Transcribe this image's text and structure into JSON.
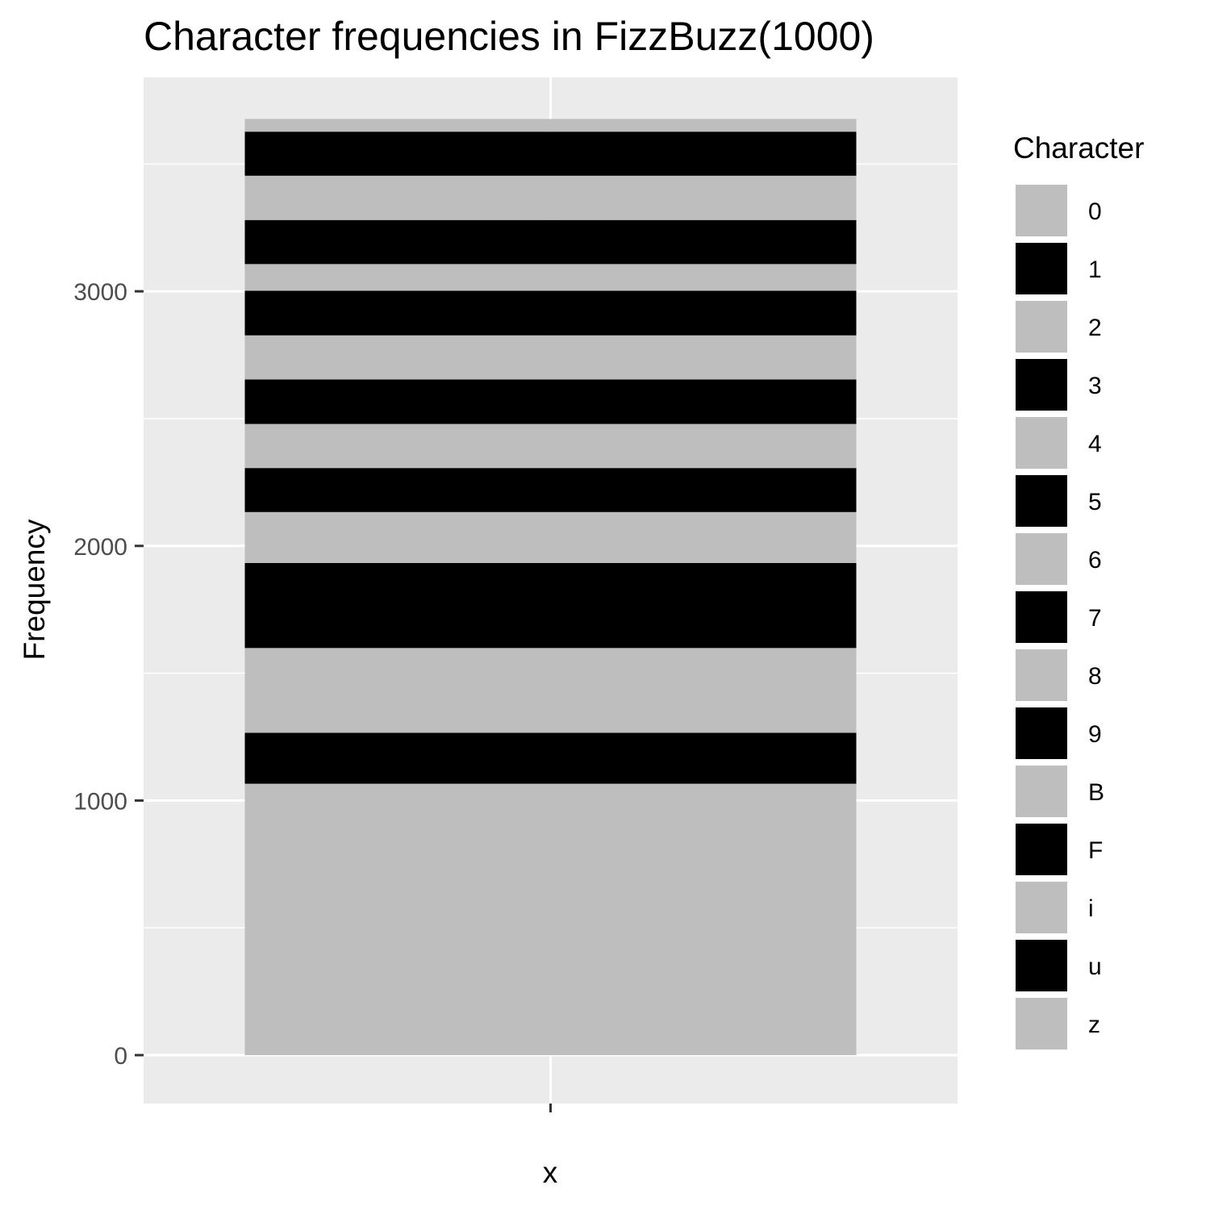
{
  "chart_data": {
    "type": "bar",
    "stacked": true,
    "title": "Character frequencies in FizzBuzz(1000)",
    "xlabel": "x",
    "ylabel": "Frequency",
    "categories": [
      ""
    ],
    "ylim": [
      -190,
      3840
    ],
    "yticks": [
      0,
      1000,
      2000,
      3000
    ],
    "y_minor_gridlines": [
      500,
      1500,
      2500,
      3500
    ],
    "grid": true,
    "legend": {
      "title": "Character",
      "placement": "right"
    },
    "fill_colors": [
      "#bebebe",
      "#000000"
    ],
    "background": "#ebebeb",
    "gridline_color": "#ffffff",
    "series": [
      {
        "name": "0",
        "values": [
          1066
        ]
      },
      {
        "name": "1",
        "values": [
          200
        ]
      },
      {
        "name": "2",
        "values": [
          333
        ]
      },
      {
        "name": "3",
        "values": [
          334
        ]
      },
      {
        "name": "4",
        "values": [
          200
        ]
      },
      {
        "name": "5",
        "values": [
          173
        ]
      },
      {
        "name": "6",
        "values": [
          173
        ]
      },
      {
        "name": "7",
        "values": [
          175
        ]
      },
      {
        "name": "8",
        "values": [
          173
        ]
      },
      {
        "name": "9",
        "values": [
          175
        ]
      },
      {
        "name": "B",
        "values": [
          105
        ]
      },
      {
        "name": "F",
        "values": [
          173
        ]
      },
      {
        "name": "i",
        "values": [
          174
        ]
      },
      {
        "name": "u",
        "values": [
          173
        ]
      },
      {
        "name": "z",
        "values": [
          50
        ]
      }
    ]
  }
}
